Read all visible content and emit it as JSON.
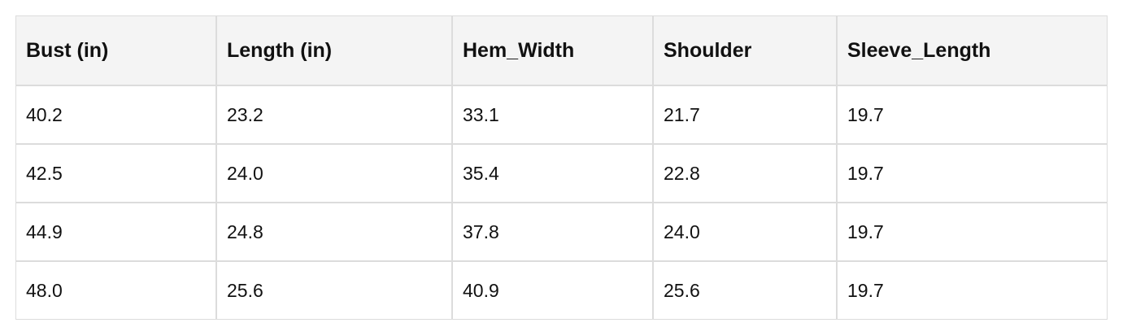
{
  "table": {
    "header": [
      "Bust (in)",
      "Length (in)",
      "Hem_Width",
      "Shoulder",
      "Sleeve_Length"
    ],
    "rows": [
      [
        "40.2",
        "23.2",
        "33.1",
        "21.7",
        "19.7"
      ],
      [
        "42.5",
        "24.0",
        "35.4",
        "22.8",
        "19.7"
      ],
      [
        "44.9",
        "24.8",
        "37.8",
        "24.0",
        "19.7"
      ],
      [
        "48.0",
        "25.6",
        "40.9",
        "25.6",
        "19.7"
      ]
    ]
  }
}
